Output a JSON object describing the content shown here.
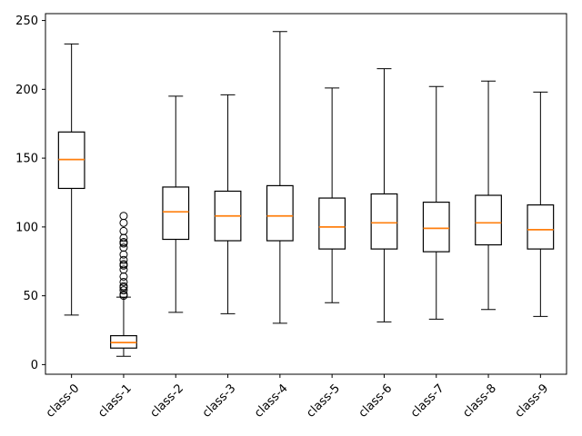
{
  "figure": {
    "background": "#ffffff"
  },
  "chart_data": {
    "type": "box",
    "title": "",
    "xlabel": "",
    "ylabel": "",
    "categories": [
      "class-0",
      "class-1",
      "class-2",
      "class-3",
      "class-4",
      "class-5",
      "class-6",
      "class-7",
      "class-8",
      "class-9"
    ],
    "y_ticks": [
      0,
      50,
      100,
      150,
      200,
      250
    ],
    "ylim": [
      -7,
      255
    ],
    "xlim": [
      0.5,
      10.5
    ],
    "grid": false,
    "legend_position": "none",
    "x_tick_rotation_deg": 45,
    "colors": {
      "box_line": "#000000",
      "whisker_line": "#000000",
      "cap_line": "#000000",
      "median_line": "#ff7f0e",
      "flier_edge": "#000000",
      "axis": "#000000",
      "background": "#ffffff"
    },
    "series": [
      {
        "name": "class-0",
        "whislo": 36,
        "q1": 128,
        "med": 149,
        "q3": 169,
        "whishi": 233,
        "fliers": []
      },
      {
        "name": "class-1",
        "whislo": 6,
        "q1": 12,
        "med": 16,
        "q3": 21,
        "whishi": 49,
        "fliers": [
          50,
          51,
          54,
          56,
          57,
          60,
          64,
          69,
          72,
          73,
          76,
          80,
          85,
          88,
          89,
          92,
          97,
          103,
          108
        ]
      },
      {
        "name": "class-2",
        "whislo": 38,
        "q1": 91,
        "med": 111,
        "q3": 129,
        "whishi": 195,
        "fliers": []
      },
      {
        "name": "class-3",
        "whislo": 37,
        "q1": 90,
        "med": 108,
        "q3": 126,
        "whishi": 196,
        "fliers": []
      },
      {
        "name": "class-4",
        "whislo": 30,
        "q1": 90,
        "med": 108,
        "q3": 130,
        "whishi": 242,
        "fliers": []
      },
      {
        "name": "class-5",
        "whislo": 45,
        "q1": 84,
        "med": 100,
        "q3": 121,
        "whishi": 201,
        "fliers": []
      },
      {
        "name": "class-6",
        "whislo": 31,
        "q1": 84,
        "med": 103,
        "q3": 124,
        "whishi": 215,
        "fliers": []
      },
      {
        "name": "class-7",
        "whislo": 33,
        "q1": 82,
        "med": 99,
        "q3": 118,
        "whishi": 202,
        "fliers": []
      },
      {
        "name": "class-8",
        "whislo": 40,
        "q1": 87,
        "med": 103,
        "q3": 123,
        "whishi": 206,
        "fliers": []
      },
      {
        "name": "class-9",
        "whislo": 35,
        "q1": 84,
        "med": 98,
        "q3": 116,
        "whishi": 198,
        "fliers": []
      }
    ]
  }
}
